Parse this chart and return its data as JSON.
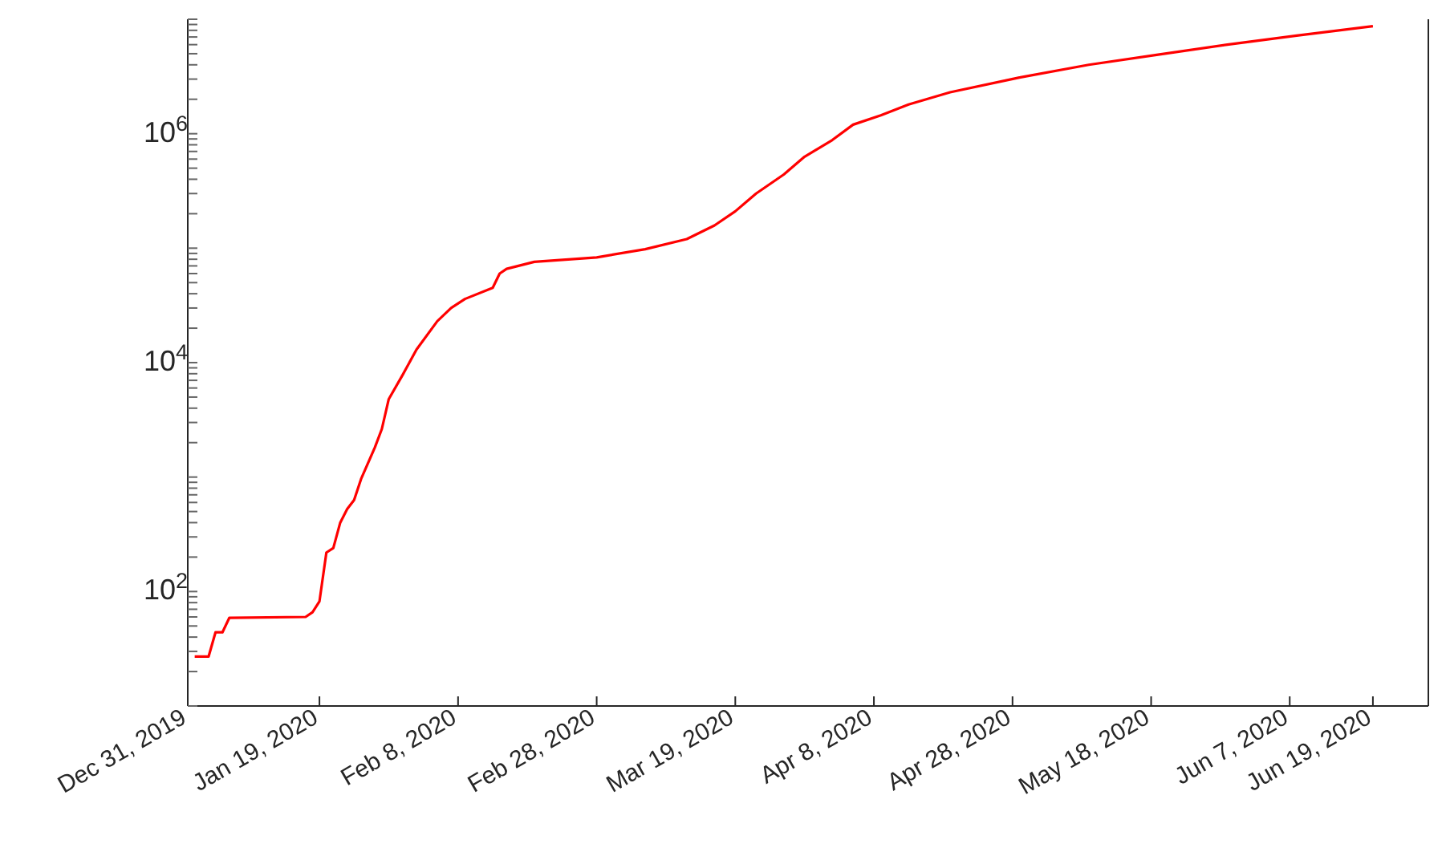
{
  "chart_data": {
    "type": "line",
    "log": "y",
    "grid": false,
    "legend": false,
    "x": [
      "2020-01-01",
      "2020-01-03",
      "2020-01-04",
      "2020-01-05",
      "2020-01-06",
      "2020-01-17",
      "2020-01-18",
      "2020-01-19",
      "2020-01-20",
      "2020-01-21",
      "2020-01-22",
      "2020-01-23",
      "2020-01-24",
      "2020-01-25",
      "2020-01-27",
      "2020-01-28",
      "2020-01-29",
      "2020-01-31",
      "2020-02-02",
      "2020-02-05",
      "2020-02-07",
      "2020-02-09",
      "2020-02-13",
      "2020-02-14",
      "2020-02-15",
      "2020-02-19",
      "2020-02-28",
      "2020-03-06",
      "2020-03-12",
      "2020-03-16",
      "2020-03-19",
      "2020-03-22",
      "2020-03-26",
      "2020-03-29",
      "2020-04-02",
      "2020-04-05",
      "2020-04-09",
      "2020-04-13",
      "2020-04-19",
      "2020-04-29",
      "2020-05-09",
      "2020-05-19",
      "2020-05-29",
      "2020-06-08",
      "2020-06-19"
    ],
    "series": [
      {
        "color": "#ff0000",
        "values": [
          27,
          27,
          44,
          44,
          59,
          60,
          66,
          82,
          219,
          240,
          400,
          525,
          630,
          960,
          1820,
          2630,
          4800,
          7800,
          13000,
          23000,
          30000,
          36000,
          45000,
          60000,
          66000,
          76000,
          83000,
          98000,
          120000,
          158000,
          210000,
          300000,
          440000,
          630000,
          880000,
          1200000,
          1450000,
          1800000,
          2300000,
          3100000,
          4000000,
          4900000,
          6000000,
          7200000,
          8700000
        ]
      }
    ],
    "xlim": [
      "2019-12-31",
      "2020-06-27"
    ],
    "xticks": [
      {
        "value": "2019-12-31",
        "label": "Dec 31, 2019"
      },
      {
        "value": "2020-01-19",
        "label": "Jan 19, 2020"
      },
      {
        "value": "2020-02-08",
        "label": "Feb 8, 2020"
      },
      {
        "value": "2020-02-28",
        "label": "Feb 28, 2020"
      },
      {
        "value": "2020-03-19",
        "label": "Mar 19, 2020"
      },
      {
        "value": "2020-04-08",
        "label": "Apr 8, 2020"
      },
      {
        "value": "2020-04-28",
        "label": "Apr 28, 2020"
      },
      {
        "value": "2020-05-18",
        "label": "May 18, 2020"
      },
      {
        "value": "2020-06-07",
        "label": "Jun 7, 2020"
      },
      {
        "value": "2020-06-19",
        "label": "Jun 19, 2020"
      }
    ],
    "ylim": [
      10,
      10000000
    ],
    "yticks": [
      {
        "value": 10,
        "label": null
      },
      {
        "value": 20,
        "label": null
      },
      {
        "value": 30,
        "label": null
      },
      {
        "value": 40,
        "label": null
      },
      {
        "value": 50,
        "label": null
      },
      {
        "value": 60,
        "label": null
      },
      {
        "value": 70,
        "label": null
      },
      {
        "value": 80,
        "label": null
      },
      {
        "value": 90,
        "label": null
      },
      {
        "value": 100,
        "label": "10$^{2}$"
      },
      {
        "value": 200,
        "label": null
      },
      {
        "value": 300,
        "label": null
      },
      {
        "value": 400,
        "label": null
      },
      {
        "value": 500,
        "label": null
      },
      {
        "value": 600,
        "label": null
      },
      {
        "value": 700,
        "label": null
      },
      {
        "value": 800,
        "label": null
      },
      {
        "value": 900,
        "label": null
      },
      {
        "value": 1000,
        "label": null
      },
      {
        "value": 2000,
        "label": null
      },
      {
        "value": 3000,
        "label": null
      },
      {
        "value": 4000,
        "label": null
      },
      {
        "value": 5000,
        "label": null
      },
      {
        "value": 6000,
        "label": null
      },
      {
        "value": 7000,
        "label": null
      },
      {
        "value": 8000,
        "label": null
      },
      {
        "value": 9000,
        "label": null
      },
      {
        "value": 10000,
        "label": "10$^{4}$"
      },
      {
        "value": 20000,
        "label": null
      },
      {
        "value": 30000,
        "label": null
      },
      {
        "value": 40000,
        "label": null
      },
      {
        "value": 50000,
        "label": null
      },
      {
        "value": 60000,
        "label": null
      },
      {
        "value": 70000,
        "label": null
      },
      {
        "value": 80000,
        "label": null
      },
      {
        "value": 90000,
        "label": null
      },
      {
        "value": 100000,
        "label": null
      },
      {
        "value": 200000,
        "label": null
      },
      {
        "value": 300000,
        "label": null
      },
      {
        "value": 400000,
        "label": null
      },
      {
        "value": 500000,
        "label": null
      },
      {
        "value": 600000,
        "label": null
      },
      {
        "value": 700000,
        "label": null
      },
      {
        "value": 800000,
        "label": null
      },
      {
        "value": 900000,
        "label": null
      },
      {
        "value": 1000000,
        "label": "10$^{6}$"
      },
      {
        "value": 2000000,
        "label": null
      },
      {
        "value": 3000000,
        "label": null
      },
      {
        "value": 4000000,
        "label": null
      },
      {
        "value": 5000000,
        "label": null
      },
      {
        "value": 6000000,
        "label": null
      },
      {
        "value": 7000000,
        "label": null
      },
      {
        "value": 8000000,
        "label": null
      },
      {
        "value": 9000000,
        "label": null
      },
      {
        "value": 10000000,
        "label": null
      }
    ],
    "marker": "none",
    "line_style": "solid"
  }
}
